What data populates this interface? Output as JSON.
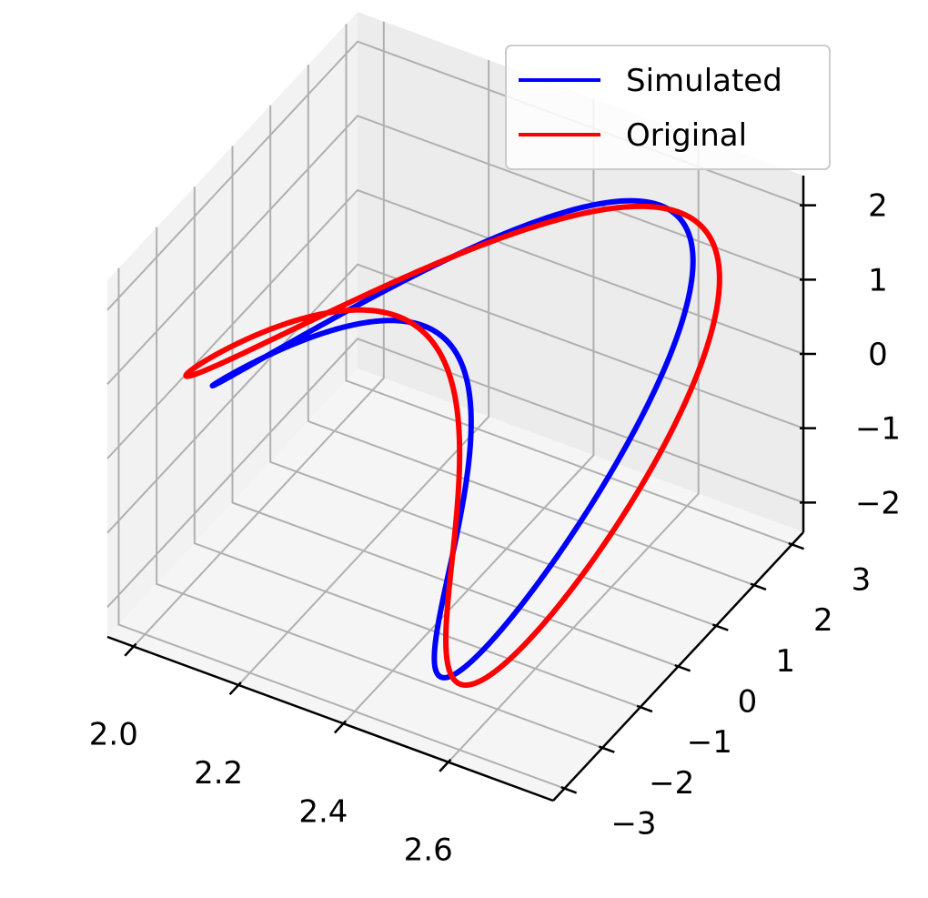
{
  "chart_data": {
    "type": "line",
    "projection": "3d",
    "title": "",
    "xlabel": "",
    "ylabel": "",
    "zlabel": "",
    "grid": true,
    "legend_placement": "top-right",
    "axes": {
      "x": {
        "range": [
          1.95,
          2.8
        ],
        "ticks": [
          2.0,
          2.2,
          2.4,
          2.6
        ],
        "tick_labels": [
          "2.0",
          "2.2",
          "2.4",
          "2.6"
        ]
      },
      "y": {
        "range": [
          -3.3,
          3.3
        ],
        "ticks": [
          -3,
          -2,
          -1,
          0,
          1,
          2,
          3
        ],
        "tick_labels": [
          "−3",
          "−2",
          "−1",
          "0",
          "1",
          "2",
          "3"
        ]
      },
      "z": {
        "range": [
          -2.4,
          2.4
        ],
        "ticks": [
          -2,
          -1,
          0,
          1,
          2
        ],
        "tick_labels": [
          "−2",
          "−1",
          "0",
          "1",
          "2"
        ]
      }
    },
    "series": [
      {
        "name": "Simulated",
        "color": "#0000ff",
        "curve": "figure-eight",
        "x_center": 2.37,
        "x_amplitude": 0.31,
        "y_amplitude": 3.0,
        "z_amplitude": 2.0
      },
      {
        "name": "Original",
        "color": "#ff0000",
        "curve": "figure-eight",
        "x_center": 2.37,
        "x_amplitude": 0.37,
        "y_amplitude": 3.0,
        "z_amplitude": 2.0
      }
    ]
  }
}
